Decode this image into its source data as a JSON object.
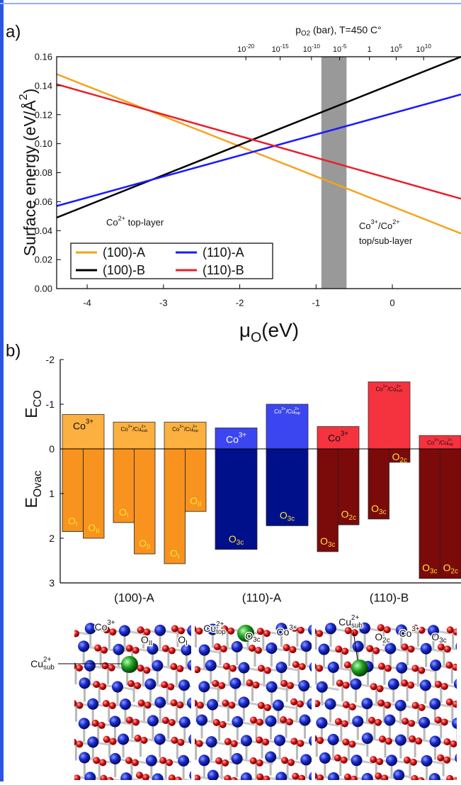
{
  "chart_data": [
    {
      "panel": "a)",
      "type": "line",
      "top_axis_title": [
        {
          "t": "p",
          "sub": "O2"
        },
        {
          "t": " (bar), T=450 C°"
        }
      ],
      "top_xticks": [
        {
          "value": -1.92,
          "label": "10",
          "sup": "-20"
        },
        {
          "value": -1.47,
          "label": "10",
          "sup": "-15"
        },
        {
          "value": -1.06,
          "label": "10",
          "sup": "-10"
        },
        {
          "value": -0.69,
          "label": "10",
          "sup": "-5"
        },
        {
          "value": -0.3,
          "label": "1"
        },
        {
          "value": 0.05,
          "label": "10",
          "sup": "5"
        },
        {
          "value": 0.41,
          "label": "10",
          "sup": "10"
        }
      ],
      "ylabel": [
        {
          "t": "Surface energy (eV/Å",
          "sup": "2"
        },
        {
          "t": ")"
        }
      ],
      "xlabel": [
        {
          "t": "μ",
          "sub": "O"
        },
        {
          "t": "(eV)"
        }
      ],
      "x": [
        -4.4,
        0.9
      ],
      "series": [
        {
          "name": "(100)-A",
          "color": "#f7a21b",
          "values": [
            0.148,
            0.038
          ]
        },
        {
          "name": "(100)-B",
          "color": "#000000",
          "values": [
            0.049,
            0.16
          ]
        },
        {
          "name": "(110)-A",
          "color": "#1a1aff",
          "values": [
            0.057,
            0.134
          ]
        },
        {
          "name": "(110)-B",
          "color": "#e8202a",
          "values": [
            0.141,
            0.062
          ]
        }
      ],
      "xlim": [
        -4.4,
        0.9
      ],
      "ylim": [
        0,
        0.16
      ],
      "xticks": [
        -4,
        -3,
        -2,
        -1,
        0
      ],
      "yticks": [
        {
          "value": 0,
          "label": "0.00"
        },
        0.02,
        0.04,
        0.06,
        0.08,
        {
          "value": 0.1,
          "label": "0.10"
        },
        0.12,
        0.14,
        0.16
      ],
      "shaded_xrange": [
        -0.93,
        -0.6
      ],
      "shaded_color": "#999999",
      "annotations": [
        {
          "segs": [
            {
              "t": "Co",
              "sup": "2+"
            },
            {
              "t": " top-layer"
            }
          ]
        },
        {
          "segs": [
            {
              "t": "Co",
              "sup": "3+"
            },
            {
              "t": "/Co",
              "sup": "2+"
            }
          ]
        },
        {
          "segs": [
            {
              "t": "top/sub-layer"
            }
          ]
        }
      ],
      "legend": "lower left"
    },
    {
      "panel": "b)",
      "type": "bar",
      "ylabel_top": [
        {
          "t": "E",
          "sub": "CO"
        }
      ],
      "ylabel_bottom": [
        {
          "t": "E",
          "sub": "Ovac"
        }
      ],
      "categories": [
        "(100)-A",
        "(110)-A",
        "(110)-B"
      ],
      "category_colors": [
        {
          "co": "#fbb040",
          "vac": "#f7931e",
          "text": "#111111"
        },
        {
          "co": "#3c46f0",
          "vac": "#00108a",
          "text": "#ffffff"
        },
        {
          "co": "#f5333f",
          "vac": "#7b0a0a",
          "text": "#111111"
        }
      ],
      "vacancy_text_color": "#ffe135",
      "ylim": [
        -2,
        3
      ],
      "yticks": [
        -2,
        -1,
        0,
        1,
        2,
        3
      ],
      "systems": [
        {
          "category": 0,
          "e_co": -0.77,
          "label": [
            {
              "t": "Co",
              "sup": "3+"
            }
          ],
          "vacancies": [
            {
              "label": [
                {
                  "t": "O",
                  "sub": "I"
                }
              ],
              "value": 1.85
            },
            {
              "label": [
                {
                  "t": "O",
                  "sub": "II"
                }
              ],
              "value": 2.0
            }
          ]
        },
        {
          "category": 0,
          "e_co": -0.6,
          "label": [
            {
              "t": "Co",
              "sup": "3+"
            },
            {
              "t": "/Cu",
              "sup": "2+",
              "sub": "sub"
            }
          ],
          "vacancies": [
            {
              "label": [
                {
                  "t": "O",
                  "sub": "I"
                }
              ],
              "value": 1.65
            },
            {
              "label": [
                {
                  "t": "O",
                  "sub": "II"
                }
              ],
              "value": 2.35
            }
          ]
        },
        {
          "category": 0,
          "e_co": -0.6,
          "label": [
            {
              "t": "Co",
              "sup": "3+"
            },
            {
              "t": "/Cu",
              "sup": "2+",
              "sub": "top"
            }
          ],
          "vacancies": [
            {
              "label": [
                {
                  "t": "O",
                  "sub": "I"
                }
              ],
              "value": 2.57
            },
            {
              "label": [
                {
                  "t": "O",
                  "sub": "II"
                }
              ],
              "value": 1.4
            }
          ]
        },
        {
          "category": 1,
          "e_co": -0.47,
          "label": [
            {
              "t": "Co",
              "sup": "3+"
            }
          ],
          "vacancies": [
            {
              "label": [
                {
                  "t": "O",
                  "sub": "3c"
                }
              ],
              "value": 2.25
            }
          ]
        },
        {
          "category": 1,
          "e_co": -1.0,
          "label": [
            {
              "t": "Co",
              "sup": "3+"
            },
            {
              "t": "/Cu",
              "sup": "2+",
              "sub": "top"
            }
          ],
          "vacancies": [
            {
              "label": [
                {
                  "t": "O",
                  "sub": "3c"
                }
              ],
              "value": 1.72
            }
          ]
        },
        {
          "category": 2,
          "e_co": -0.5,
          "label": [
            {
              "t": "Co",
              "sup": "3+"
            }
          ],
          "vacancies": [
            {
              "label": [
                {
                  "t": "O",
                  "sub": "3c"
                }
              ],
              "value": 2.3
            },
            {
              "label": [
                {
                  "t": "O",
                  "sub": "2c"
                }
              ],
              "value": 1.7
            }
          ]
        },
        {
          "category": 2,
          "e_co": -1.5,
          "label": [
            {
              "t": "Co",
              "sup": "3+"
            },
            {
              "t": "/Cu",
              "sup": "2+",
              "sub": "sub"
            }
          ],
          "vacancies": [
            {
              "label": [
                {
                  "t": "O",
                  "sub": "3c"
                }
              ],
              "value": 1.57
            },
            {
              "label": [
                {
                  "t": "O",
                  "sub": "2c"
                }
              ],
              "value": 0.3
            }
          ]
        },
        {
          "category": 2,
          "e_co": -0.3,
          "label": [
            {
              "t": "Co",
              "sup": "3+"
            },
            {
              "t": "/Cu",
              "sup": "2+",
              "sub": "top"
            }
          ],
          "vacancies": [
            {
              "label": [
                {
                  "t": "O",
                  "sub": "3c"
                }
              ],
              "value": 2.9
            },
            {
              "label": [
                {
                  "t": "O",
                  "sub": "2c"
                }
              ],
              "value": 2.9
            }
          ]
        }
      ]
    }
  ],
  "structures": [
    {
      "labels": [
        [
          {
            "t": "Co",
            "sup": "3+"
          }
        ],
        [
          {
            "t": "O",
            "sub": "II"
          }
        ],
        [
          {
            "t": "O",
            "sub": "I"
          }
        ],
        [
          {
            "t": "Cu",
            "sup": "2+",
            "sub": "sub"
          }
        ]
      ]
    },
    {
      "labels": [
        [
          {
            "t": "Cu",
            "sup": "2+",
            "sub": "top"
          }
        ],
        [
          {
            "t": "O",
            "sub": "3c"
          }
        ],
        [
          {
            "t": "Co",
            "sup": "3+"
          }
        ]
      ]
    },
    {
      "labels": [
        [
          {
            "t": "Cu",
            "sup": "2+",
            "sub": "sub"
          }
        ],
        [
          {
            "t": "O",
            "sub": "2c"
          }
        ],
        [
          {
            "t": "Co",
            "sup": "3+"
          }
        ],
        [
          {
            "t": "O",
            "sub": "3c"
          }
        ]
      ]
    }
  ]
}
